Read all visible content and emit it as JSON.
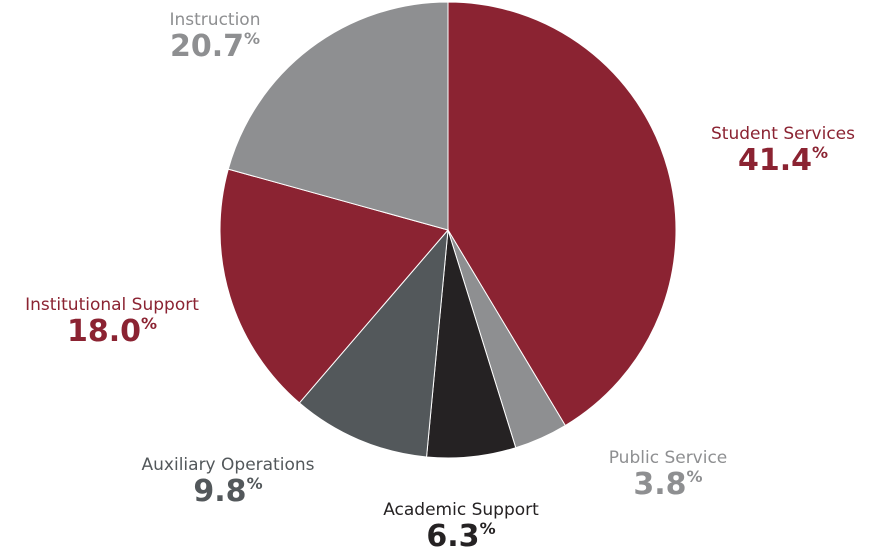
{
  "chart_data": {
    "type": "pie",
    "title": "",
    "slices": [
      {
        "name": "Student Services",
        "value": 41.4,
        "display": "41.4",
        "color": "#8b2332",
        "label_color": "#8b2332"
      },
      {
        "name": "Public Service",
        "value": 3.8,
        "display": "3.8",
        "color": "#8e8f91",
        "label_color": "#8e8f91"
      },
      {
        "name": "Academic Support",
        "value": 6.3,
        "display": "6.3",
        "color": "#252223",
        "label_color": "#252223"
      },
      {
        "name": "Auxiliary Operations",
        "value": 9.8,
        "display": "9.8",
        "color": "#53585b",
        "label_color": "#53585b"
      },
      {
        "name": "Institutional Support",
        "value": 18.0,
        "display": "18.0",
        "color": "#8b2332",
        "label_color": "#8b2332"
      },
      {
        "name": "Instruction",
        "value": 20.7,
        "display": "20.7",
        "color": "#8e8f91",
        "label_color": "#8e8f91"
      }
    ],
    "percent_sign": "%",
    "start": "12 o'clock",
    "direction": "clockwise",
    "legend": "none"
  }
}
